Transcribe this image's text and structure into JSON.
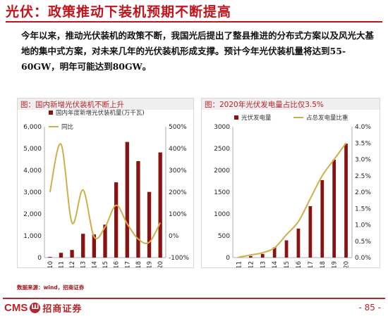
{
  "slide": {
    "title": "光伏：政策推动下装机预期不断提高",
    "intro": "今年以来，推动光伏装机的政策不断，我国光后提出了整县推进的分布式方案以及风光大基地的集中式方案，对未来几年的光伏装机形成支撑。预计今年光伏装机量将达到55-60GW，明年可能达到80GW。",
    "source": "数据来源：wind，招商证券",
    "logo_text": "CMS",
    "logo_badge": "Ш",
    "logo_cn": "招商证券",
    "page_number": "- 85 -"
  },
  "colors": {
    "accent": "#c2141b",
    "bar": "#8b1212",
    "line": "#cfae4c"
  },
  "chart_data": [
    {
      "type": "bar",
      "title": "图：国内新增光伏装机不断上升",
      "categories": [
        "2010",
        "2011",
        "2012",
        "2013",
        "2014",
        "2015",
        "2016",
        "2017",
        "2018",
        "2019",
        "2020"
      ],
      "series": [
        {
          "name": "国内年度新增光伏装机量(万千瓦)",
          "type": "bar",
          "axis": "left",
          "values": [
            30,
            220,
            350,
            1090,
            1060,
            1510,
            3450,
            5300,
            4420,
            3010,
            4820
          ]
        },
        {
          "name": "同比",
          "type": "line",
          "smooth": true,
          "axis": "right",
          "values": [
            200,
            420,
            60,
            210,
            -5,
            40,
            140,
            55,
            -15,
            -30,
            60
          ]
        }
      ],
      "ylim": [
        0,
        6000
      ],
      "yticks": [
        "0",
        "1,000",
        "2,000",
        "3,000",
        "4,000",
        "5,000",
        "6,000"
      ],
      "y2lim": [
        -100,
        500
      ],
      "y2ticks": [
        "-100%",
        "0%",
        "100%",
        "200%",
        "300%",
        "400%",
        "500%"
      ],
      "legend": "top-left",
      "grid": false
    },
    {
      "type": "bar",
      "title": "图：2020年光伏发电量占比仅3.5%",
      "categories": [
        "2011",
        "2012",
        "2013",
        "2014",
        "2015",
        "2016",
        "2017",
        "2018",
        "2019",
        "2020"
      ],
      "series": [
        {
          "name": "光伏发电量",
          "type": "bar",
          "axis": "left",
          "values": [
            6,
            36,
            84,
            235,
            395,
            665,
            1178,
            1775,
            2243,
            2611
          ]
        },
        {
          "name": "占总发电量比重",
          "type": "line",
          "smooth": true,
          "axis": "right",
          "values": [
            0.01,
            0.08,
            0.15,
            0.3,
            0.7,
            1.1,
            1.8,
            2.5,
            3.0,
            3.5
          ]
        }
      ],
      "ylim": [
        0,
        3000
      ],
      "yticks": [
        "0",
        "500",
        "1000",
        "1500",
        "2000",
        "2500",
        "3000"
      ],
      "y2lim": [
        0,
        4.0
      ],
      "y2ticks": [
        "0.0%",
        "0.5%",
        "1.0%",
        "1.5%",
        "2.0%",
        "2.5%",
        "3.0%",
        "3.5%",
        "4.0%"
      ],
      "legend": "top",
      "grid": false
    }
  ]
}
